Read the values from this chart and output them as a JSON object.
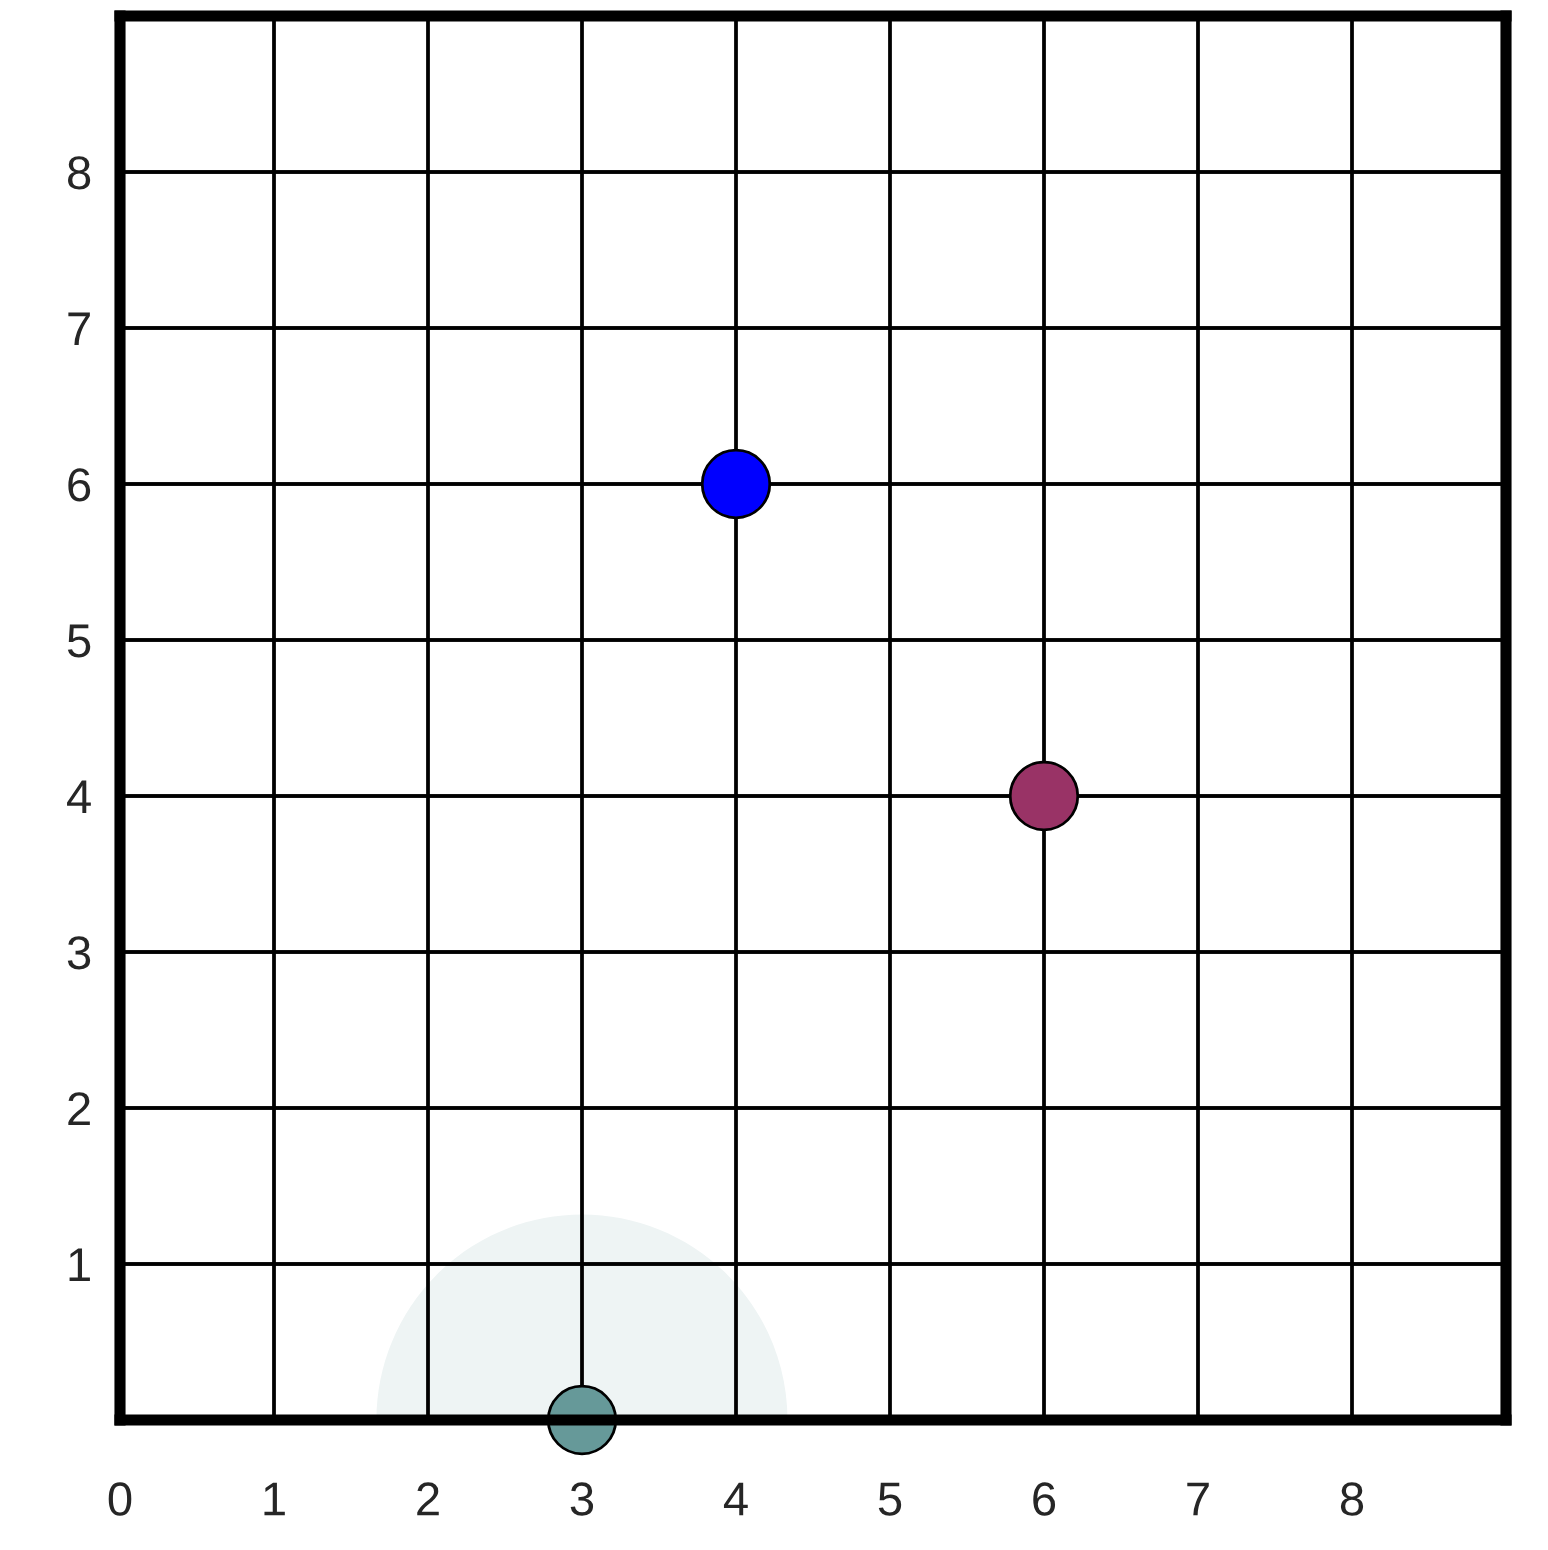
{
  "chart_data": {
    "type": "bubble",
    "xlim": [
      0,
      9
    ],
    "ylim": [
      0,
      9
    ],
    "xticks": [
      0,
      1,
      2,
      3,
      4,
      5,
      6,
      7,
      8
    ],
    "yticks": [
      1,
      2,
      3,
      4,
      5,
      6,
      7,
      8
    ],
    "grid": true,
    "legend": false,
    "series": [
      {
        "color": "#eef4f4",
        "x": [
          3
        ],
        "values": [
          0
        ],
        "sizes": [
          1
        ]
      },
      {
        "color": "#0000ff",
        "x": [
          4
        ],
        "values": [
          6
        ],
        "sizes": [
          0.027
        ]
      },
      {
        "color": "#993366",
        "x": [
          6
        ],
        "values": [
          4
        ],
        "sizes": [
          0.027
        ]
      },
      {
        "color": "#669999",
        "x": [
          3
        ],
        "values": [
          0
        ],
        "sizes": [
          0.027
        ]
      }
    ]
  }
}
